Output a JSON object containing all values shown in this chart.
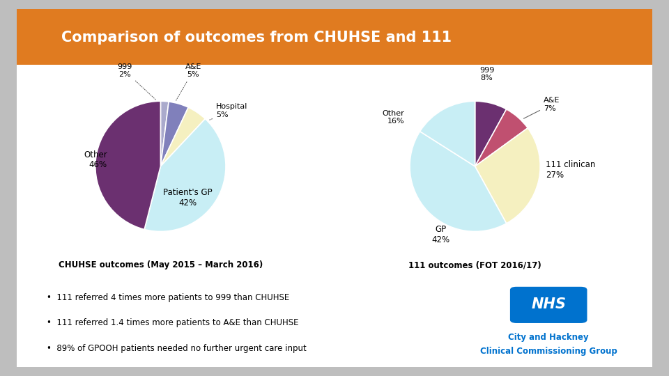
{
  "title": "Comparison of outcomes from CHUHSE and 111",
  "title_bg_color": "#E07B20",
  "bg_color": "#FFFFFF",
  "outer_bg_color": "#BEBEBE",
  "pie1_sizes": [
    42,
    46,
    2,
    5,
    5,
    2
  ],
  "pie1_colors": [
    "#C8EEF5",
    "#6B3070",
    "#8080BB",
    "#C05070",
    "#F5F0C0",
    "#AAAACC"
  ],
  "pie1_startangle": 90,
  "pie1_caption": "CHUHSE outcomes (May 2015 – March 2016)",
  "pie2_sizes": [
    42,
    27,
    7,
    8,
    16
  ],
  "pie2_colors": [
    "#C8EEF5",
    "#F5F0C0",
    "#C05070",
    "#6B3070",
    "#C8EEF5"
  ],
  "pie2_startangle": 90,
  "pie2_caption": "111 outcomes (FOT 2016/17)",
  "bullets": [
    "111 referred 4 times more patients to 999 than CHUHSE",
    "111 referred 1.4 times more patients to A&E than CHUHSE",
    "89% of GPOOH patients needed no further urgent care input"
  ],
  "ccg_line1": "City and Hackney",
  "ccg_line2": "Clinical Commissioning Group",
  "ccg_color": "#0072CE",
  "nhs_bg": "#0072CE"
}
